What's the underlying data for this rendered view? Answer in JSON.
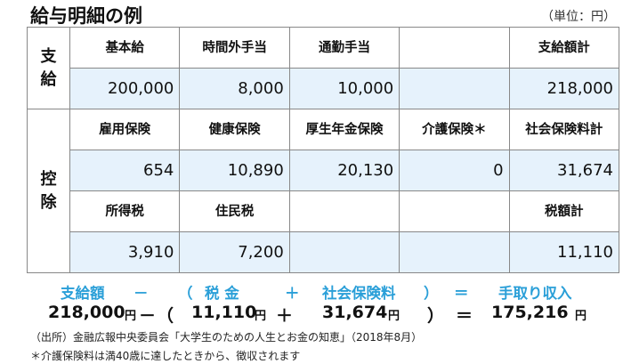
{
  "title": "給与明細の例",
  "unit": "（単位：円）",
  "pay": {
    "label": "支\n給",
    "headers": [
      "基本給",
      "時間外手当",
      "通勤手当",
      "",
      "支給額計"
    ],
    "values": [
      "200,000",
      "8,000",
      "10,000",
      "",
      "218,000"
    ]
  },
  "deduction": {
    "label": "控\n除",
    "headers1": [
      "雇用保険",
      "健康保険",
      "厚生年金保険",
      "介護保険＊",
      "社会保険料計"
    ],
    "values1": [
      "654",
      "10,890",
      "20,130",
      "0",
      "31,674"
    ],
    "headers2": [
      "所得税",
      "住民税",
      "",
      "",
      "税額計"
    ],
    "values2": [
      "3,910",
      "7,200",
      "",
      "",
      "11,110"
    ]
  },
  "formula": {
    "labels": [
      "支給額",
      "－",
      "（",
      "税 金",
      "＋",
      "社会保険料",
      "）",
      "＝",
      "手取り収入"
    ],
    "values": [
      "218,000",
      "円",
      "－",
      "（",
      "11,110",
      "円",
      "＋",
      "31,674",
      "円",
      "）",
      "＝",
      "175,216",
      "円"
    ]
  },
  "source": "（出所）金融広報中央委員会「大学生のための人生とお金の知恵」（2018年8月）",
  "footnote": "＊介護保険料は満40歳に達したときから、徴収されます",
  "colors": {
    "value_row_bg": "#e6f2fc",
    "formula_label": "#2a9fd8"
  }
}
